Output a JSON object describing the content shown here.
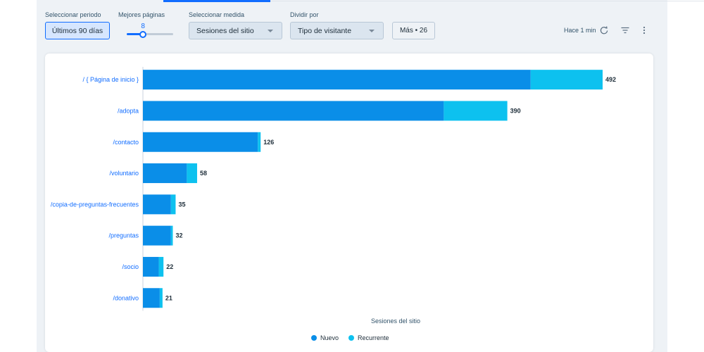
{
  "controls": {
    "period": {
      "label": "Seleccionar periodo",
      "value": "Últimos 90 días"
    },
    "top_pages": {
      "label": "Mejores páginas",
      "value": "8",
      "fraction": 0.35
    },
    "measure": {
      "label": "Seleccionar medida",
      "value": "Sesiones del sitio"
    },
    "split": {
      "label": "Dividir por",
      "value": "Tipo de visitante"
    },
    "more_button": "Más • 26",
    "updated": "Hace 1 min"
  },
  "colors": {
    "accent": "#116dff",
    "nuevo": "#0a8ee8",
    "recurrente": "#0dc1ef"
  },
  "chart_data": {
    "type": "bar",
    "orientation": "horizontal",
    "stacked": true,
    "categories": [
      "/ { Página de inicio }",
      "/adopta",
      "/contacto",
      "/voluntario",
      "/copia-de-preguntas-frecuentes",
      "/preguntas",
      "/socio",
      "/donativo"
    ],
    "series": [
      {
        "name": "Nuevo",
        "color": "#0a8ee8",
        "values": [
          415,
          322,
          123,
          47,
          30,
          30,
          17,
          18
        ]
      },
      {
        "name": "Recurrente",
        "color": "#0dc1ef",
        "values": [
          77,
          68,
          3,
          11,
          5,
          2,
          5,
          3
        ]
      }
    ],
    "totals": [
      "492",
      "390",
      "126",
      "58",
      "35",
      "32",
      "22",
      "21"
    ],
    "xlabel": "Sesiones del sitio",
    "xlim": [
      0,
      492
    ],
    "grid": false,
    "legend_position": "bottom-center"
  }
}
